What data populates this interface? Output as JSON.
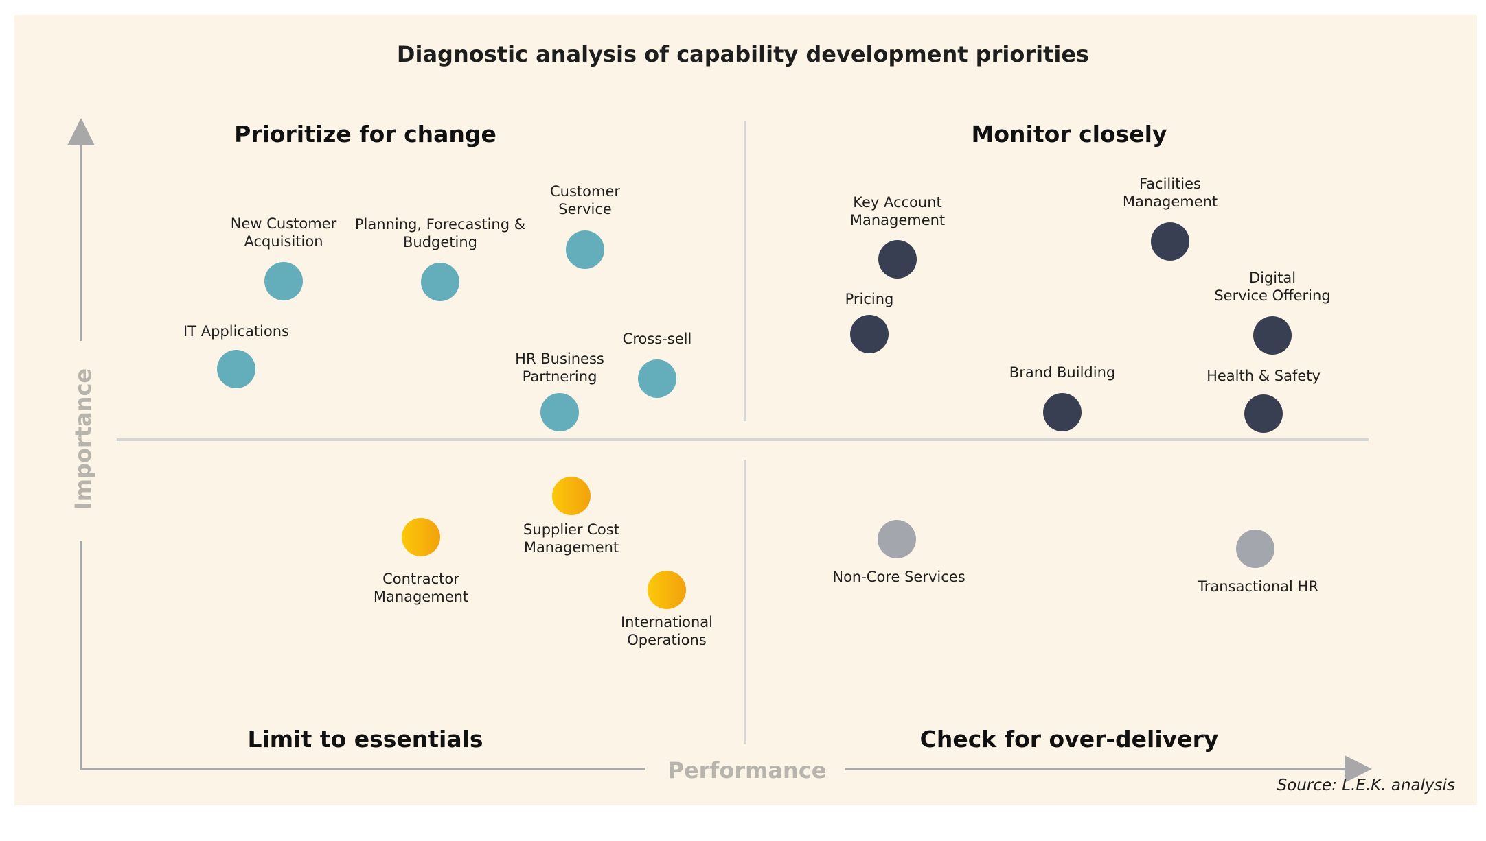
{
  "title": "Diagnostic analysis of capability development priorities",
  "quadrants": {
    "top_left": "Prioritize for change",
    "top_right": "Monitor closely",
    "bottom_left": "Limit to essentials",
    "bottom_right": "Check for over-delivery"
  },
  "axes": {
    "y": "Importance",
    "x": "Performance"
  },
  "source": "Source: L.E.K. analysis",
  "colors": {
    "teal": "#64aebb",
    "navy": "#383f52",
    "gold": "#f7b407",
    "gray": "#a3a6ad",
    "background": "#fcf4e6"
  },
  "items": [
    {
      "label": "New Customer\nAcquisition",
      "color": "teal"
    },
    {
      "label": "Planning, Forecasting &\nBudgeting",
      "color": "teal"
    },
    {
      "label": "Customer\nService",
      "color": "teal"
    },
    {
      "label": "IT Applications",
      "color": "teal"
    },
    {
      "label": "HR Business\nPartnering",
      "color": "teal"
    },
    {
      "label": "Cross-sell",
      "color": "teal"
    },
    {
      "label": "Key Account\nManagement",
      "color": "navy"
    },
    {
      "label": "Facilities\nManagement",
      "color": "navy"
    },
    {
      "label": "Pricing",
      "color": "navy"
    },
    {
      "label": "Digital\nService Offering",
      "color": "navy"
    },
    {
      "label": "Brand Building",
      "color": "navy"
    },
    {
      "label": "Health & Safety",
      "color": "navy"
    },
    {
      "label": "Supplier Cost\nManagement",
      "color": "gold"
    },
    {
      "label": "Contractor\nManagement",
      "color": "gold"
    },
    {
      "label": "International\nOperations",
      "color": "gold"
    },
    {
      "label": "Non-Core Services",
      "color": "gray"
    },
    {
      "label": "Transactional HR",
      "color": "gray"
    }
  ]
}
